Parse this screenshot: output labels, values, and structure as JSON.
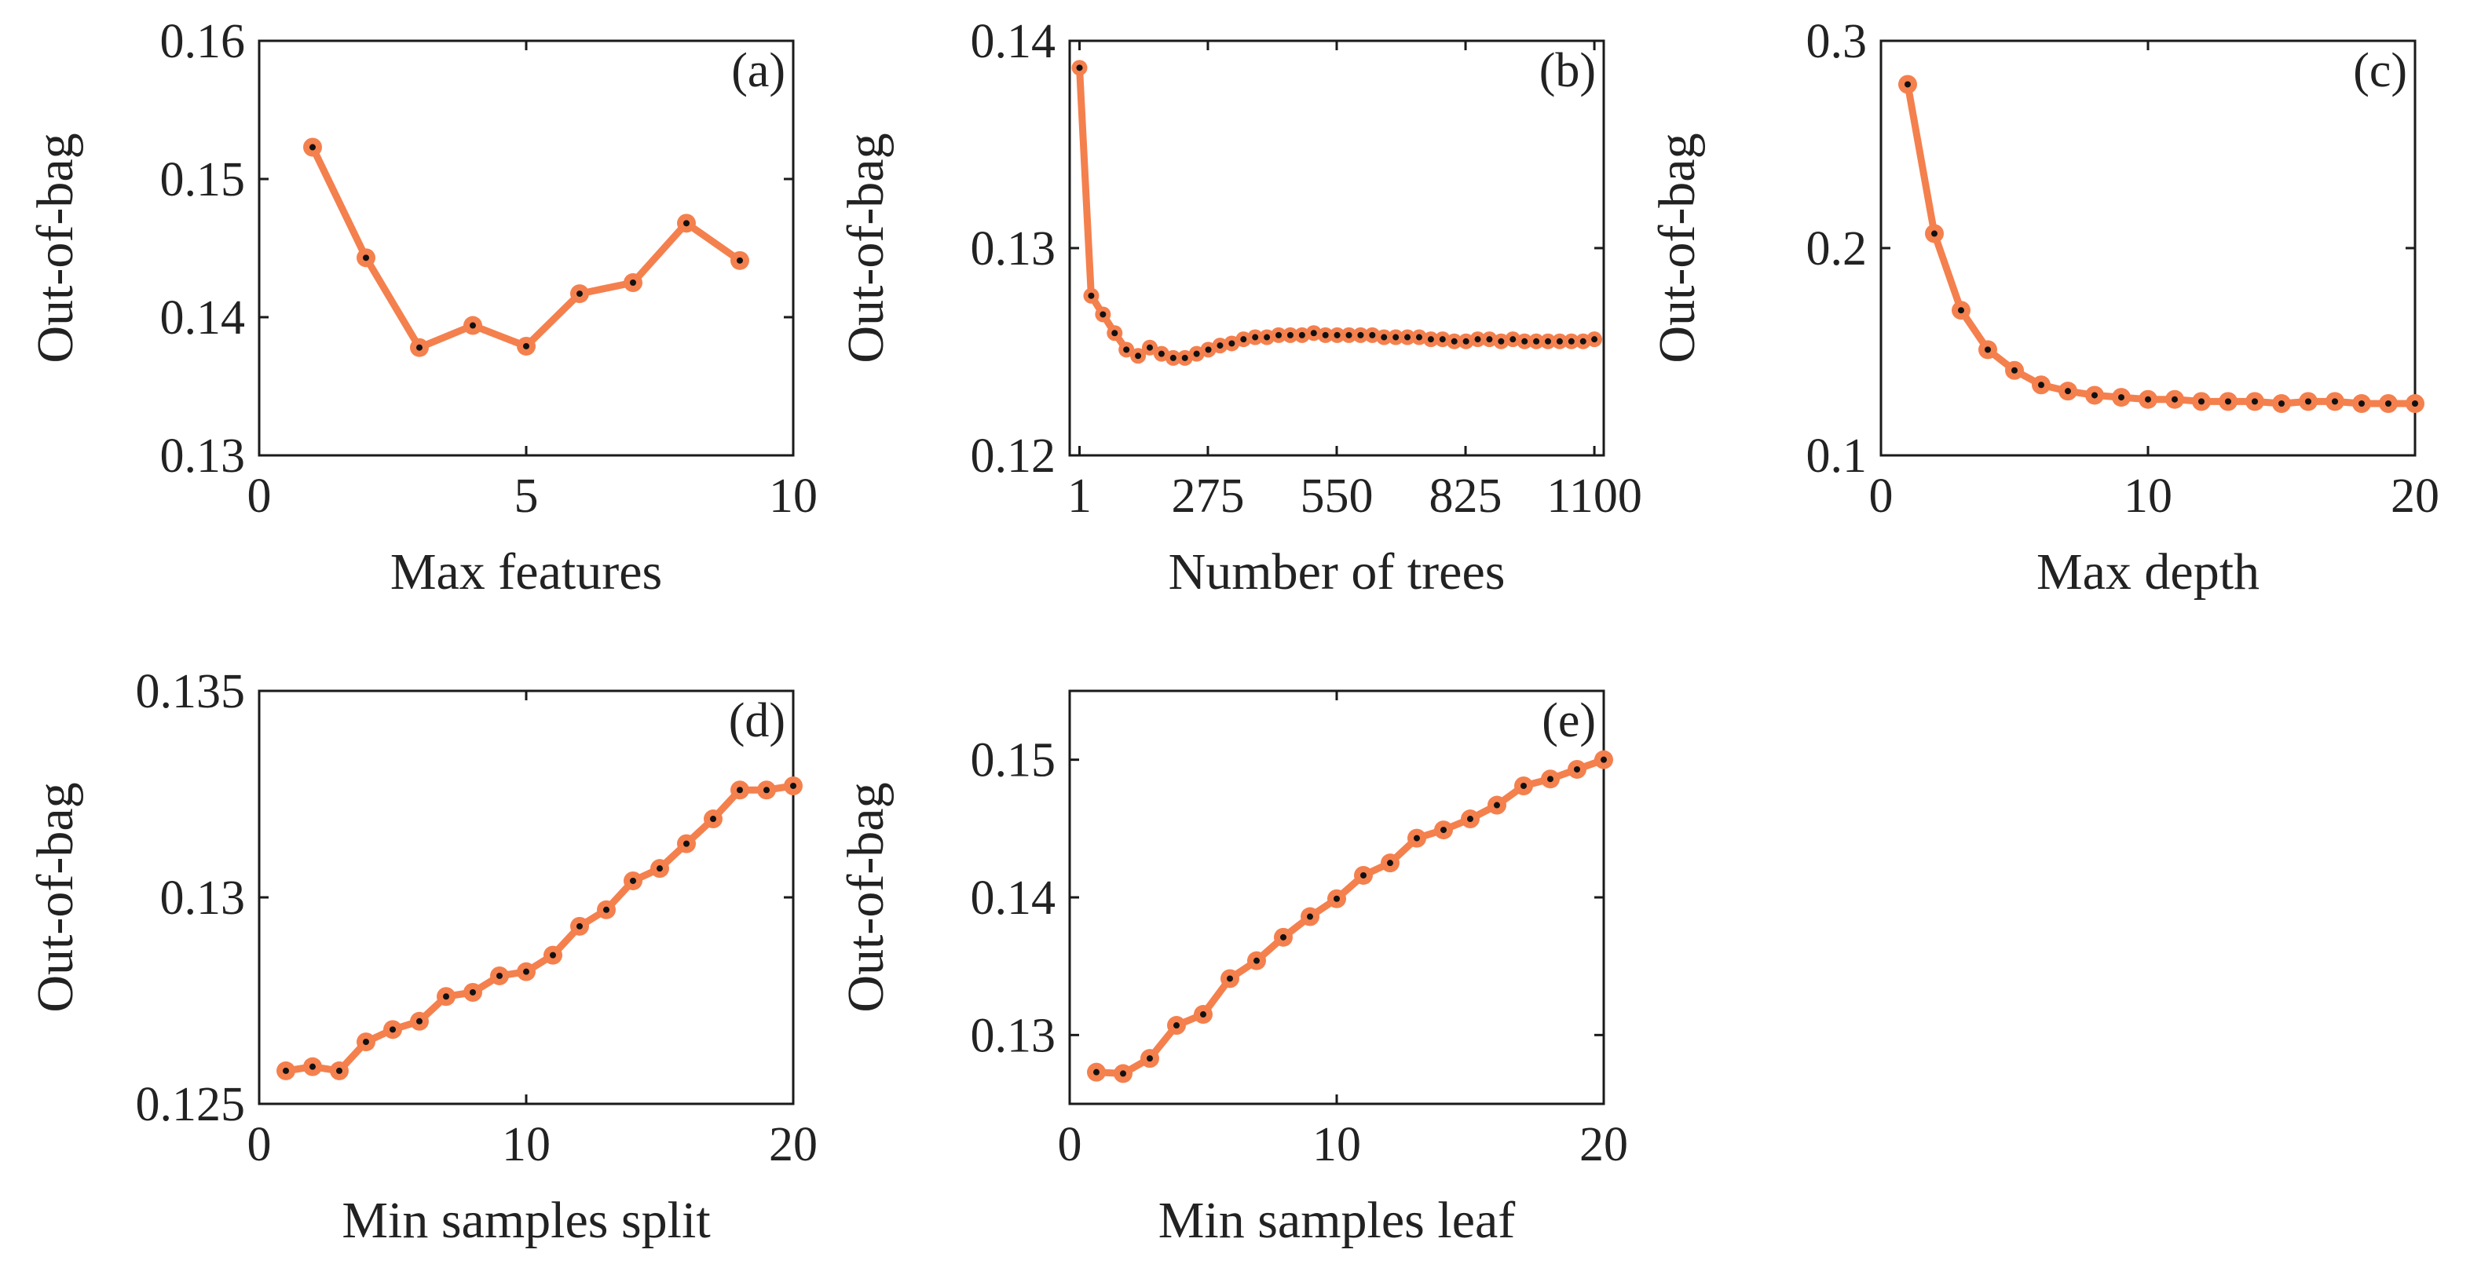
{
  "colors": {
    "line": "#f4804e",
    "marker_fill": "#f4804e",
    "marker_center": "#111111",
    "axis": "#1a1a1a"
  },
  "chart_data": [
    {
      "id": "a",
      "type": "line",
      "panel_label": "(a)",
      "xlabel": "Max features",
      "ylabel": "Out-of-bag",
      "xlim": [
        0,
        10
      ],
      "ylim": [
        0.13,
        0.16
      ],
      "xticks": [
        0,
        5,
        10
      ],
      "xtick_labels": [
        "0",
        "5",
        "10"
      ],
      "yticks": [
        0.13,
        0.14,
        0.15,
        0.16
      ],
      "ytick_labels": [
        "0.13",
        "0.14",
        "0.15",
        "0.16"
      ],
      "x": [
        1,
        2,
        3,
        4,
        5,
        6,
        7,
        8,
        9
      ],
      "y": [
        0.1523,
        0.1443,
        0.1378,
        0.1394,
        0.1379,
        0.1417,
        0.1425,
        0.1468,
        0.1441
      ]
    },
    {
      "id": "b",
      "type": "line",
      "panel_label": "(b)",
      "xlabel": "Number of trees",
      "ylabel": "Out-of-bag",
      "xlim": [
        -20,
        1120
      ],
      "ylim": [
        0.12,
        0.14
      ],
      "xticks": [
        1,
        275,
        550,
        825,
        1100
      ],
      "xtick_labels": [
        "1",
        "275",
        "550",
        "825",
        "1100"
      ],
      "yticks": [
        0.12,
        0.13,
        0.14
      ],
      "ytick_labels": [
        "0.12",
        "0.13",
        "0.14"
      ],
      "x": [
        1,
        26,
        51,
        76,
        101,
        126,
        151,
        176,
        201,
        226,
        251,
        276,
        301,
        326,
        351,
        376,
        401,
        426,
        451,
        476,
        501,
        526,
        551,
        576,
        601,
        626,
        651,
        676,
        701,
        726,
        751,
        776,
        801,
        826,
        851,
        876,
        901,
        926,
        951,
        976,
        1001,
        1026,
        1051,
        1076,
        1100
      ],
      "y": [
        0.1387,
        0.1277,
        0.1268,
        0.1259,
        0.1251,
        0.1248,
        0.1252,
        0.1249,
        0.1247,
        0.1247,
        0.1249,
        0.1251,
        0.1253,
        0.1254,
        0.1256,
        0.1257,
        0.1257,
        0.1258,
        0.1258,
        0.1258,
        0.1259,
        0.1258,
        0.1258,
        0.1258,
        0.1258,
        0.1258,
        0.1257,
        0.1257,
        0.1257,
        0.1257,
        0.1256,
        0.1256,
        0.1255,
        0.1255,
        0.1256,
        0.1256,
        0.1255,
        0.1256,
        0.1255,
        0.1255,
        0.1255,
        0.1255,
        0.1255,
        0.1255,
        0.1256
      ]
    },
    {
      "id": "c",
      "type": "line",
      "panel_label": "(c)",
      "xlabel": "Max depth",
      "ylabel": "Out-of-bag",
      "xlim": [
        0,
        20
      ],
      "ylim": [
        0.1,
        0.3
      ],
      "xticks": [
        0,
        10,
        20
      ],
      "xtick_labels": [
        "0",
        "10",
        "20"
      ],
      "yticks": [
        0.1,
        0.2,
        0.3
      ],
      "ytick_labels": [
        "0.1",
        "0.2",
        "0.3"
      ],
      "x": [
        1,
        2,
        3,
        4,
        5,
        6,
        7,
        8,
        9,
        10,
        11,
        12,
        13,
        14,
        15,
        16,
        17,
        18,
        19,
        20
      ],
      "y": [
        0.279,
        0.207,
        0.17,
        0.151,
        0.141,
        0.134,
        0.131,
        0.129,
        0.128,
        0.127,
        0.127,
        0.126,
        0.126,
        0.126,
        0.125,
        0.126,
        0.126,
        0.125,
        0.125,
        0.125
      ]
    },
    {
      "id": "d",
      "type": "line",
      "panel_label": "(d)",
      "xlabel": "Min samples split",
      "ylabel": "Out-of-bag",
      "xlim": [
        0,
        20
      ],
      "ylim": [
        0.125,
        0.135
      ],
      "xticks": [
        0,
        10,
        20
      ],
      "xtick_labels": [
        "0",
        "10",
        "20"
      ],
      "yticks": [
        0.125,
        0.13,
        0.135
      ],
      "ytick_labels": [
        "0.125",
        "0.13",
        "0.135"
      ],
      "x": [
        1,
        2,
        3,
        4,
        5,
        6,
        7,
        8,
        9,
        10,
        11,
        12,
        13,
        14,
        15,
        16,
        17,
        18,
        19,
        20
      ],
      "y": [
        0.1258,
        0.1259,
        0.1258,
        0.1265,
        0.1268,
        0.127,
        0.1276,
        0.1277,
        0.1281,
        0.1282,
        0.1286,
        0.1293,
        0.1297,
        0.1304,
        0.1307,
        0.1313,
        0.1319,
        0.1326,
        0.1326,
        0.1327
      ]
    },
    {
      "id": "e",
      "type": "line",
      "panel_label": "(e)",
      "xlabel": "Min samples leaf",
      "ylabel": "Out-of-bag",
      "xlim": [
        0,
        20
      ],
      "ylim": [
        0.125,
        0.155
      ],
      "xticks": [
        0,
        10,
        20
      ],
      "xtick_labels": [
        "0",
        "10",
        "20"
      ],
      "yticks": [
        0.13,
        0.14,
        0.15
      ],
      "ytick_labels": [
        "0.13",
        "0.14",
        "0.15"
      ],
      "x": [
        1,
        2,
        3,
        4,
        5,
        6,
        7,
        8,
        9,
        10,
        11,
        12,
        13,
        14,
        15,
        16,
        17,
        18,
        19,
        20
      ],
      "y": [
        0.1273,
        0.1272,
        0.1283,
        0.1307,
        0.1315,
        0.1341,
        0.1354,
        0.1371,
        0.1386,
        0.1399,
        0.1416,
        0.1425,
        0.1443,
        0.1449,
        0.1457,
        0.1467,
        0.1481,
        0.1486,
        0.1493,
        0.15
      ]
    }
  ]
}
